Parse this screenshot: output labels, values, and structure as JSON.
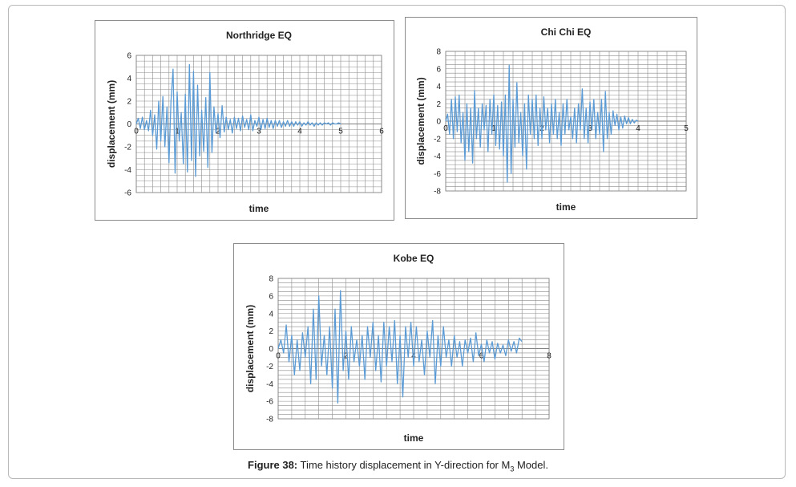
{
  "caption": {
    "label": "Figure 38:",
    "text_before": "Time history displacement in Y-direction for M",
    "subscript": "3",
    "text_after": " Model."
  },
  "colors": {
    "line": "#5b9bd5",
    "grid": "#8c8c8c",
    "axis": "#7f7f7f"
  },
  "chart_data": [
    {
      "type": "line",
      "title": "Northridge EQ",
      "xlabel": "time",
      "ylabel": "displacement (mm)",
      "xlim": [
        0,
        6
      ],
      "ylim": [
        -6,
        6
      ],
      "xticks": [
        0,
        1,
        2,
        3,
        4,
        5,
        6
      ],
      "yticks": [
        6,
        4,
        2,
        0,
        -2,
        -4,
        -6
      ],
      "grid": true,
      "series": [
        {
          "x": [
            0,
            0.05,
            0.1,
            0.15,
            0.2,
            0.25,
            0.3,
            0.35,
            0.4,
            0.45,
            0.5,
            0.55,
            0.6,
            0.65,
            0.7,
            0.75,
            0.8,
            0.85,
            0.9,
            0.95,
            1.0,
            1.05,
            1.1,
            1.15,
            1.2,
            1.25,
            1.3,
            1.35,
            1.4,
            1.45,
            1.5,
            1.55,
            1.6,
            1.65,
            1.7,
            1.75,
            1.8,
            1.85,
            1.9,
            1.95,
            2.0,
            2.05,
            2.1,
            2.15,
            2.2,
            2.25,
            2.3,
            2.35,
            2.4,
            2.45,
            2.5,
            2.55,
            2.6,
            2.65,
            2.7,
            2.75,
            2.8,
            2.85,
            2.9,
            2.95,
            3.0,
            3.05,
            3.1,
            3.15,
            3.2,
            3.25,
            3.3,
            3.35,
            3.4,
            3.45,
            3.5,
            3.55,
            3.6,
            3.65,
            3.7,
            3.75,
            3.8,
            3.85,
            3.9,
            3.95,
            4.0,
            4.05,
            4.1,
            4.15,
            4.2,
            4.25,
            4.3,
            4.35,
            4.4,
            4.45,
            4.5,
            4.55,
            4.6,
            4.65,
            4.7,
            4.75,
            4.8,
            4.85,
            4.9,
            4.95,
            5.0
          ],
          "y": [
            0,
            0.5,
            -0.4,
            0.6,
            -0.5,
            0.3,
            -0.6,
            1.2,
            -1.0,
            0.8,
            -2.2,
            2.0,
            -1.5,
            2.4,
            -2.0,
            1.5,
            -3.4,
            2.0,
            4.8,
            -4.3,
            2.8,
            -1.5,
            1.0,
            -3.5,
            2.6,
            -4.2,
            5.2,
            -3.2,
            4.6,
            -4.6,
            3.4,
            -2.8,
            1.2,
            -2.4,
            2.3,
            -3.8,
            4.5,
            -2.5,
            1.5,
            -0.8,
            0.9,
            -1.2,
            1.6,
            -0.7,
            0.6,
            -0.5,
            0.4,
            -0.8,
            0.6,
            -0.4,
            0.5,
            -0.6,
            0.7,
            -0.3,
            0.4,
            -0.5,
            0.8,
            -0.6,
            0.3,
            -0.2,
            0.6,
            -0.5,
            0.4,
            -0.4,
            0.5,
            -0.3,
            0.3,
            -0.4,
            0.3,
            -0.2,
            0.3,
            -0.3,
            0.2,
            -0.2,
            0.3,
            -0.2,
            0.2,
            -0.2,
            0.2,
            -0.1,
            0.2,
            -0.2,
            0.1,
            -0.1,
            0.2,
            -0.1,
            0.1,
            -0.2,
            0.1,
            -0.1,
            0.1,
            -0.1,
            0.1,
            0,
            0.1,
            -0.1,
            0.1,
            0,
            0,
            0.1,
            0
          ]
        }
      ]
    },
    {
      "type": "line",
      "title": "Chi Chi EQ",
      "xlabel": "time",
      "ylabel": "displacement (mm)",
      "xlim": [
        0,
        5
      ],
      "ylim": [
        -8,
        8
      ],
      "xticks": [
        0,
        1,
        2,
        3,
        4,
        5
      ],
      "yticks": [
        8,
        6,
        4,
        2,
        0,
        -2,
        -4,
        -6,
        -8
      ],
      "grid": true,
      "series": [
        {
          "x": [
            0,
            0.04,
            0.08,
            0.12,
            0.16,
            0.2,
            0.24,
            0.28,
            0.32,
            0.36,
            0.4,
            0.44,
            0.48,
            0.52,
            0.56,
            0.6,
            0.64,
            0.68,
            0.72,
            0.76,
            0.8,
            0.84,
            0.88,
            0.92,
            0.96,
            1.0,
            1.04,
            1.08,
            1.12,
            1.16,
            1.2,
            1.24,
            1.28,
            1.32,
            1.36,
            1.4,
            1.44,
            1.48,
            1.52,
            1.56,
            1.6,
            1.64,
            1.68,
            1.72,
            1.76,
            1.8,
            1.84,
            1.88,
            1.92,
            1.96,
            2.0,
            2.04,
            2.08,
            2.12,
            2.16,
            2.2,
            2.24,
            2.28,
            2.32,
            2.36,
            2.4,
            2.44,
            2.48,
            2.52,
            2.56,
            2.6,
            2.64,
            2.68,
            2.72,
            2.76,
            2.8,
            2.84,
            2.88,
            2.92,
            2.96,
            3.0,
            3.04,
            3.08,
            3.12,
            3.16,
            3.2,
            3.24,
            3.28,
            3.32,
            3.36,
            3.4,
            3.44,
            3.48,
            3.52,
            3.56,
            3.6,
            3.64,
            3.68,
            3.72,
            3.76,
            3.8,
            3.84,
            3.88,
            3.92,
            3.96,
            4.0
          ],
          "y": [
            0,
            0.8,
            -1.5,
            2.5,
            -2.0,
            2.8,
            -1.2,
            3.0,
            -2.5,
            1.0,
            -4.5,
            2.0,
            -3.5,
            1.5,
            -4.8,
            3.5,
            -2.0,
            1.5,
            -3.0,
            2.0,
            -1.0,
            1.8,
            -3.5,
            2.5,
            -1.5,
            3.0,
            -2.8,
            1.8,
            -3.2,
            2.2,
            -4.0,
            3.0,
            -7.0,
            6.4,
            -6.0,
            2.5,
            -3.0,
            4.4,
            -2.5,
            1.0,
            -4.0,
            2.0,
            -5.5,
            3.0,
            -1.5,
            2.5,
            -2.0,
            3.0,
            -2.8,
            1.5,
            -2.0,
            2.8,
            -1.0,
            1.5,
            -2.5,
            2.0,
            -1.5,
            2.5,
            -2.0,
            1.0,
            -2.8,
            2.0,
            -1.5,
            2.5,
            -1.0,
            0.5,
            -2.0,
            1.5,
            -2.5,
            2.0,
            -1.0,
            3.7,
            -2.0,
            1.5,
            -2.5,
            2.2,
            -1.0,
            2.5,
            -2.0,
            1.0,
            -1.5,
            2.5,
            -3.5,
            3.4,
            -2.0,
            1.0,
            -1.5,
            1.2,
            -0.5,
            0.8,
            -1.0,
            0.5,
            -0.8,
            0.6,
            -0.3,
            0.4,
            -0.3,
            0.2,
            -0.2,
            0.1,
            0
          ]
        }
      ]
    },
    {
      "type": "line",
      "title": "Kobe EQ",
      "xlabel": "time",
      "ylabel": "displacement (mm)",
      "xlim": [
        0,
        8
      ],
      "ylim": [
        -8,
        8
      ],
      "xticks": [
        0,
        2,
        4,
        6,
        8
      ],
      "yticks": [
        8,
        6,
        4,
        2,
        0,
        -2,
        -4,
        -6,
        -8
      ],
      "grid": true,
      "series": [
        {
          "x": [
            0,
            0.08,
            0.16,
            0.24,
            0.32,
            0.4,
            0.48,
            0.56,
            0.64,
            0.72,
            0.8,
            0.88,
            0.96,
            1.04,
            1.12,
            1.2,
            1.28,
            1.36,
            1.44,
            1.52,
            1.6,
            1.68,
            1.76,
            1.84,
            1.92,
            2.0,
            2.08,
            2.16,
            2.24,
            2.32,
            2.4,
            2.48,
            2.56,
            2.64,
            2.72,
            2.8,
            2.88,
            2.96,
            3.04,
            3.12,
            3.2,
            3.28,
            3.36,
            3.44,
            3.52,
            3.6,
            3.68,
            3.76,
            3.84,
            3.92,
            4.0,
            4.08,
            4.16,
            4.24,
            4.32,
            4.4,
            4.48,
            4.56,
            4.64,
            4.72,
            4.8,
            4.88,
            4.96,
            5.04,
            5.12,
            5.2,
            5.28,
            5.36,
            5.44,
            5.52,
            5.6,
            5.68,
            5.76,
            5.84,
            5.92,
            6.0,
            6.08,
            6.16,
            6.24,
            6.32,
            6.4,
            6.48,
            6.56,
            6.64,
            6.72,
            6.8,
            6.88,
            6.96,
            7.04,
            7.12,
            7.2
          ],
          "y": [
            0,
            1.0,
            -0.5,
            2.7,
            -1.5,
            1.5,
            -3.0,
            1.0,
            -2.5,
            1.8,
            -1.0,
            2.5,
            -4.0,
            4.5,
            -3.5,
            6.0,
            -2.0,
            1.5,
            -3.0,
            2.5,
            -4.5,
            4.5,
            -6.2,
            6.6,
            -2.5,
            2.0,
            -3.5,
            2.5,
            -1.5,
            1.0,
            -2.0,
            1.5,
            -3.5,
            2.5,
            -1.0,
            3.0,
            -2.5,
            1.5,
            -3.8,
            3.0,
            -2.0,
            2.5,
            -1.5,
            3.2,
            -4.0,
            1.5,
            -5.5,
            2.5,
            -1.0,
            3.0,
            -2.0,
            2.5,
            -1.5,
            1.0,
            -3.0,
            2.0,
            -1.0,
            3.2,
            -4.0,
            1.5,
            -2.0,
            2.5,
            -1.0,
            1.0,
            -2.0,
            1.5,
            -1.0,
            0.8,
            -2.0,
            1.0,
            -0.5,
            1.2,
            -1.5,
            1.8,
            -0.8,
            0.5,
            -1.5,
            1.0,
            -0.5,
            0.8,
            -1.2,
            0.6,
            -0.5,
            0.4,
            -0.8,
            1.0,
            -0.3,
            0.8,
            -0.5,
            1.2,
            0.8
          ]
        }
      ]
    }
  ]
}
